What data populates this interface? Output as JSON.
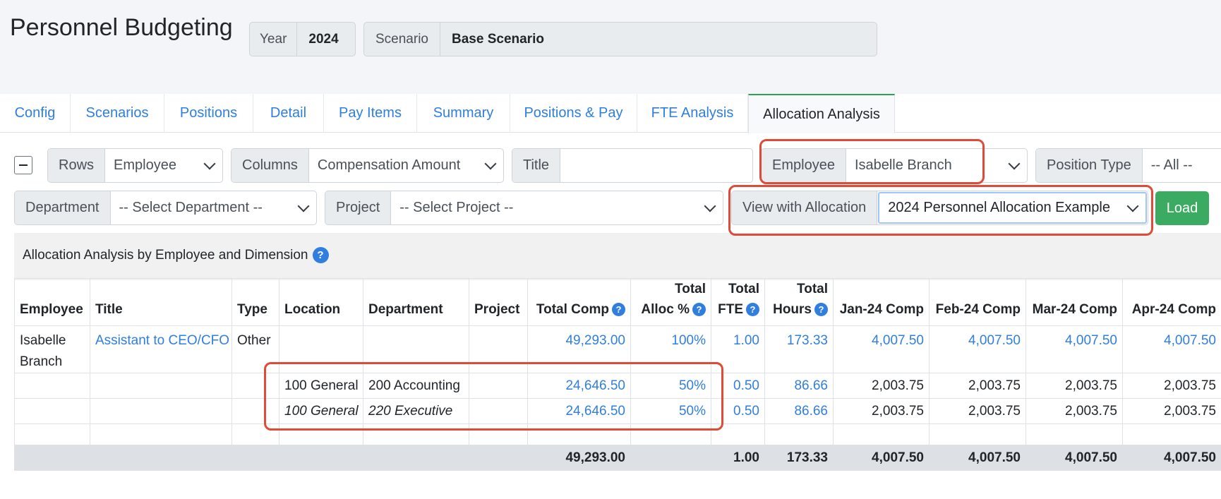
{
  "header": {
    "title": "Personnel Budgeting",
    "year_label": "Year",
    "year_value": "2024",
    "scenario_label": "Scenario",
    "scenario_value": "Base Scenario"
  },
  "tabs": [
    "Config",
    "Scenarios",
    "Positions",
    "Detail",
    "Pay Items",
    "Summary",
    "Positions & Pay",
    "FTE Analysis",
    "Allocation Analysis"
  ],
  "active_tab": "Allocation Analysis",
  "filters": {
    "rows_label": "Rows",
    "rows_value": "Employee",
    "columns_label": "Columns",
    "columns_value": "Compensation Amount",
    "title_label": "Title",
    "title_value": "",
    "employee_label": "Employee",
    "employee_value": "Isabelle Branch",
    "position_type_label": "Position Type",
    "position_type_value": "-- All --",
    "department_label": "Department",
    "department_value": "-- Select Department --",
    "project_label": "Project",
    "project_value": "-- Select Project --",
    "allocation_label": "View with Allocation",
    "allocation_value": "2024 Personnel Allocation Example",
    "load_label": "Load"
  },
  "panel": {
    "title": "Allocation Analysis by Employee and Dimension"
  },
  "table": {
    "headers": {
      "employee": "Employee",
      "title": "Title",
      "type": "Type",
      "location": "Location",
      "department": "Department",
      "project": "Project",
      "total_comp": "Total Comp",
      "total_alloc_1": "Total",
      "total_alloc_2": "Alloc %",
      "total_fte_1": "Total",
      "total_fte_2": "FTE",
      "total_hours_1": "Total",
      "total_hours_2": "Hours",
      "jan": "Jan-24 Comp",
      "feb": "Feb-24 Comp",
      "mar": "Mar-24 Comp",
      "apr": "Apr-24 Comp"
    },
    "rows": [
      {
        "employee_line1": "Isabelle",
        "employee_line2": "Branch",
        "title": "Assistant to CEO/CFO",
        "type": "Other",
        "location": "",
        "department": "",
        "project": "",
        "total_comp": "49,293.00",
        "alloc": "100%",
        "fte": "1.00",
        "hours": "173.33",
        "jan": "4,007.50",
        "feb": "4,007.50",
        "mar": "4,007.50",
        "apr": "4,007.50"
      },
      {
        "location": "100 General",
        "department": "200 Accounting",
        "project": "",
        "total_comp": "24,646.50",
        "alloc": "50%",
        "fte": "0.50",
        "hours": "86.66",
        "jan": "2,003.75",
        "feb": "2,003.75",
        "mar": "2,003.75",
        "apr": "2,003.75"
      },
      {
        "location": "100 General",
        "department": "220 Executive",
        "project": "",
        "total_comp": "24,646.50",
        "alloc": "50%",
        "fte": "0.50",
        "hours": "86.66",
        "jan": "2,003.75",
        "feb": "2,003.75",
        "mar": "2,003.75",
        "apr": "2,003.75"
      }
    ],
    "totals": {
      "total_comp": "49,293.00",
      "fte": "1.00",
      "hours": "173.33",
      "jan": "4,007.50",
      "feb": "4,007.50",
      "mar": "4,007.50",
      "apr": "4,007.50"
    }
  },
  "icons": {
    "help": "?"
  },
  "colors": {
    "link": "#2f7ee0",
    "highlight": "#e04a38",
    "load_button": "#3cab62",
    "active_tab_accent": "#2ea05b"
  }
}
